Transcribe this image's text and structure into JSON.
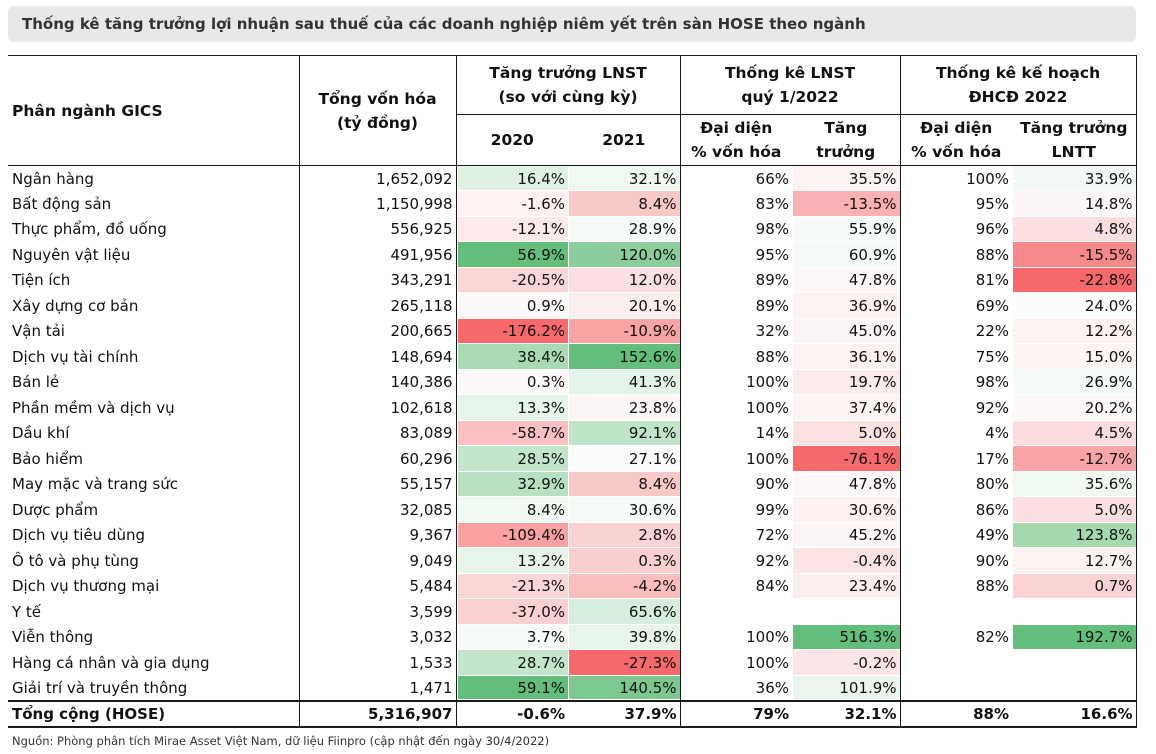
{
  "title": "Thống kê tăng trưởng lợi nhuận sau thuế của các doanh nghiệp niêm yết trên sàn HOSE theo ngành",
  "headers": {
    "sector": "Phân ngành GICS",
    "market_cap_line1": "Tổng vốn hóa",
    "market_cap_line2": "(tỷ đồng)",
    "growth_line1": "Tăng trưởng LNST",
    "growth_line2": "(so với cùng kỳ)",
    "y2020": "2020",
    "y2021": "2021",
    "q1_line1": "Thống kê LNST",
    "q1_line2": "quý 1/2022",
    "rep_line1": "Đại diện",
    "rep_line2": "% vốn hóa",
    "q1_growth": "Tăng trưởng",
    "plan_line1": "Thống kê kế hoạch",
    "plan_line2": "ĐHCĐ 2022",
    "plan_rep_line1": "Đại diện",
    "plan_rep_line2": "% vốn hóa",
    "plan_growth_line1": "Tăng trưởng",
    "plan_growth_line2": "LNTT"
  },
  "colors": {
    "green_strong": "#63be7b",
    "green_mid": "#a8dbb3",
    "green_light": "#dff1e3",
    "red_strong": "#f8696b",
    "red_mid": "#f9a3a5",
    "red_light": "#fcd9da",
    "red_faint": "#fdeeee"
  },
  "rows": [
    {
      "sector": "Ngân hàng",
      "cap": "1,652,092",
      "g2020": "16.4%",
      "g2021": "32.1%",
      "q1_rep": "66%",
      "q1_growth": "35.5%",
      "plan_rep": "100%",
      "plan_growth": "33.9%",
      "bg": [
        "#dff1e3",
        "#f0f8f2",
        "",
        "#fdf3f3",
        "",
        "#f3faf5"
      ]
    },
    {
      "sector": "Bất động sản",
      "cap": "1,150,998",
      "g2020": "-1.6%",
      "g2021": "8.4%",
      "q1_rep": "83%",
      "q1_growth": "-13.5%",
      "plan_rep": "95%",
      "plan_growth": "14.8%",
      "bg": [
        "#fdf1f1",
        "#f9c9ca",
        "",
        "#f9b1b3",
        "",
        "#fdf6f6"
      ]
    },
    {
      "sector": "Thực phẩm, đồ uống",
      "cap": "556,925",
      "g2020": "-12.1%",
      "g2021": "28.9%",
      "q1_rep": "98%",
      "q1_growth": "55.9%",
      "plan_rep": "96%",
      "plan_growth": "4.8%",
      "bg": [
        "#fde9ea",
        "#f7fbf8",
        "",
        "#f8fcf9",
        "",
        "#fbdfe0"
      ]
    },
    {
      "sector": "Nguyên vật liệu",
      "cap": "491,956",
      "g2020": "56.9%",
      "g2021": "120.0%",
      "q1_rep": "95%",
      "q1_growth": "60.9%",
      "plan_rep": "88%",
      "plan_growth": "-15.5%",
      "bg": [
        "#63be7b",
        "#8ccd9d",
        "",
        "#f6fbf7",
        "",
        "#f8898b"
      ]
    },
    {
      "sector": "Tiện ích",
      "cap": "343,291",
      "g2020": "-20.5%",
      "g2021": "12.0%",
      "q1_rep": "89%",
      "q1_growth": "47.8%",
      "plan_rep": "81%",
      "plan_growth": "-22.8%",
      "bg": [
        "#fbd6d7",
        "#fce0e1",
        "",
        "#fdf7f7",
        "",
        "#f8696b"
      ]
    },
    {
      "sector": "Xây dựng cơ bản",
      "cap": "265,118",
      "g2020": "0.9%",
      "g2021": "20.1%",
      "q1_rep": "89%",
      "q1_growth": "36.9%",
      "plan_rep": "69%",
      "plan_growth": "24.0%",
      "bg": [
        "#fdf9f9",
        "#fdeeee",
        "",
        "#fdf3f3",
        "",
        "#fbfdfc"
      ]
    },
    {
      "sector": "Vận tải",
      "cap": "200,665",
      "g2020": "-176.2%",
      "g2021": "-10.9%",
      "q1_rep": "32%",
      "q1_growth": "45.0%",
      "plan_rep": "22%",
      "plan_growth": "12.2%",
      "bg": [
        "#f8696b",
        "#f9a3a5",
        "",
        "#fdf6f6",
        "",
        "#fdf2f2"
      ]
    },
    {
      "sector": "Dịch vụ tài chính",
      "cap": "148,694",
      "g2020": "38.4%",
      "g2021": "152.6%",
      "q1_rep": "88%",
      "q1_growth": "36.1%",
      "plan_rep": "75%",
      "plan_growth": "15.0%",
      "bg": [
        "#a8dbb3",
        "#63be7b",
        "",
        "#fdf2f2",
        "",
        "#fdf4f4"
      ]
    },
    {
      "sector": "Bán lẻ",
      "cap": "140,386",
      "g2020": "0.3%",
      "g2021": "41.3%",
      "q1_rep": "100%",
      "q1_growth": "19.7%",
      "plan_rep": "98%",
      "plan_growth": "26.9%",
      "bg": [
        "#fdf9f9",
        "#e4f3e8",
        "",
        "#fcebeb",
        "",
        "#f5fbf7"
      ]
    },
    {
      "sector": "Phần mềm và dịch vụ",
      "cap": "102,618",
      "g2020": "13.3%",
      "g2021": "23.8%",
      "q1_rep": "100%",
      "q1_growth": "37.4%",
      "plan_rep": "92%",
      "plan_growth": "20.2%",
      "bg": [
        "#e6f4ea",
        "#fdf6f6",
        "",
        "#fdf4f4",
        "",
        "#fdf9f9"
      ]
    },
    {
      "sector": "Dầu khí",
      "cap": "83,089",
      "g2020": "-58.7%",
      "g2021": "92.1%",
      "q1_rep": "14%",
      "q1_growth": "5.0%",
      "plan_rep": "4%",
      "plan_growth": "4.5%",
      "bg": [
        "#fbc0c1",
        "#bfe4c8",
        "",
        "#fce1e1",
        "",
        "#fcdcdd"
      ]
    },
    {
      "sector": "Bảo hiểm",
      "cap": "60,296",
      "g2020": "28.5%",
      "g2021": "27.1%",
      "q1_rep": "100%",
      "q1_growth": "-76.1%",
      "plan_rep": "17%",
      "plan_growth": "-12.7%",
      "bg": [
        "#c2e5cb",
        "#f9fcfa",
        "",
        "#f8696b",
        "",
        "#f9a4a6"
      ]
    },
    {
      "sector": "May mặc và trang sức",
      "cap": "55,157",
      "g2020": "32.9%",
      "g2021": "8.4%",
      "q1_rep": "90%",
      "q1_growth": "47.8%",
      "plan_rep": "80%",
      "plan_growth": "35.6%",
      "bg": [
        "#b6e0c0",
        "#f9c9ca",
        "",
        "#fdf7f7",
        "",
        "#f0f8f2"
      ]
    },
    {
      "sector": "Dược phẩm",
      "cap": "32,085",
      "g2020": "8.4%",
      "g2021": "30.6%",
      "q1_rep": "99%",
      "q1_growth": "30.6%",
      "plan_rep": "86%",
      "plan_growth": "5.0%",
      "bg": [
        "#f0f8f2",
        "#f6fbf7",
        "",
        "#fdf0f0",
        "",
        "#fcdfe0"
      ]
    },
    {
      "sector": "Dịch vụ tiêu dùng",
      "cap": "9,367",
      "g2020": "-109.4%",
      "g2021": "2.8%",
      "q1_rep": "72%",
      "q1_growth": "45.2%",
      "plan_rep": "49%",
      "plan_growth": "123.8%",
      "bg": [
        "#f9a0a2",
        "#fbd2d3",
        "",
        "#fdf6f6",
        "",
        "#a4d9b0"
      ]
    },
    {
      "sector": "Ô tô và phụ tùng",
      "cap": "9,049",
      "g2020": "13.2%",
      "g2021": "0.3%",
      "q1_rep": "92%",
      "q1_growth": "-0.4%",
      "plan_rep": "90%",
      "plan_growth": "12.7%",
      "bg": [
        "#e6f4ea",
        "#fbcfd0",
        "",
        "#fce4e5",
        "",
        "#fdf2f2"
      ]
    },
    {
      "sector": "Dịch vụ thương mại",
      "cap": "5,484",
      "g2020": "-21.3%",
      "g2021": "-4.2%",
      "q1_rep": "84%",
      "q1_growth": "23.4%",
      "plan_rep": "88%",
      "plan_growth": "0.7%",
      "bg": [
        "#fbd6d7",
        "#fabdbe",
        "",
        "#fdeeee",
        "",
        "#fbd3d4"
      ]
    },
    {
      "sector": "Y tế",
      "cap": "3,599",
      "g2020": "-37.0%",
      "g2021": "65.6%",
      "q1_rep": "",
      "q1_growth": "",
      "plan_rep": "",
      "plan_growth": "",
      "bg": [
        "#fcd0d1",
        "#d7eedd",
        "",
        "",
        "",
        ""
      ]
    },
    {
      "sector": "Viễn thông",
      "cap": "3,032",
      "g2020": "3.7%",
      "g2021": "39.8%",
      "q1_rep": "100%",
      "q1_growth": "516.3%",
      "plan_rep": "82%",
      "plan_growth": "192.7%",
      "bg": [
        "#f8fcf9",
        "#e6f4ea",
        "",
        "#63be7b",
        "",
        "#63be7b"
      ]
    },
    {
      "sector": "Hàng cá nhân và gia dụng",
      "cap": "1,533",
      "g2020": "28.7%",
      "g2021": "-27.3%",
      "q1_rep": "100%",
      "q1_growth": "-0.2%",
      "plan_rep": "",
      "plan_growth": "",
      "bg": [
        "#c2e5cb",
        "#f8696b",
        "",
        "#fce5e6",
        "",
        ""
      ]
    },
    {
      "sector": "Giải trí và truyền thông",
      "cap": "1,471",
      "g2020": "59.1%",
      "g2021": "140.5%",
      "q1_rep": "36%",
      "q1_growth": "101.9%",
      "plan_rep": "",
      "plan_growth": "",
      "bg": [
        "#63be7b",
        "#7dc790",
        "",
        "#eaf6ed",
        "",
        ""
      ]
    }
  ],
  "total": {
    "sector": "Tổng cộng (HOSE)",
    "cap": "5,316,907",
    "g2020": "-0.6%",
    "g2021": "37.9%",
    "q1_rep": "79%",
    "q1_growth": "32.1%",
    "plan_rep": "88%",
    "plan_growth": "16.6%"
  },
  "source": "Nguồn: Phòng phân tích Mirae Asset Việt Nam, dữ liệu Fiinpro (cập nhật đến ngày 30/4/2022)"
}
